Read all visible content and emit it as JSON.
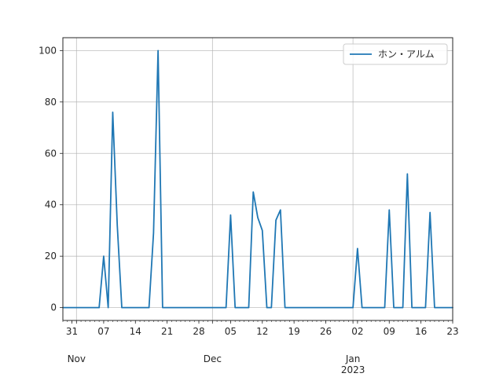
{
  "chart_data": {
    "type": "line",
    "legend": {
      "placement": "top-right"
    },
    "grid": true,
    "xlim": [
      "2022-10-29",
      "2023-01-23"
    ],
    "ylim": [
      -5,
      105
    ],
    "y_ticks": [
      0,
      20,
      40,
      60,
      80,
      100
    ],
    "x_ticks": [
      {
        "date": "2022-10-31",
        "label": "31"
      },
      {
        "date": "2022-11-07",
        "label": "07"
      },
      {
        "date": "2022-11-14",
        "label": "14"
      },
      {
        "date": "2022-11-21",
        "label": "21"
      },
      {
        "date": "2022-11-28",
        "label": "28"
      },
      {
        "date": "2022-12-05",
        "label": "05"
      },
      {
        "date": "2022-12-12",
        "label": "12"
      },
      {
        "date": "2022-12-19",
        "label": "19"
      },
      {
        "date": "2022-12-26",
        "label": "26"
      },
      {
        "date": "2023-01-02",
        "label": "02"
      },
      {
        "date": "2023-01-09",
        "label": "09"
      },
      {
        "date": "2023-01-16",
        "label": "16"
      },
      {
        "date": "2023-01-23",
        "label": "23"
      }
    ],
    "month_labels": [
      {
        "date": "2022-11-01",
        "label": "Nov"
      },
      {
        "date": "2022-12-01",
        "label": "Dec"
      },
      {
        "date": "2023-01-01",
        "label": "Jan"
      }
    ],
    "year_label": {
      "date": "2023-01-01",
      "label": "2023"
    },
    "series": [
      {
        "name": "ホン・アルム",
        "color": "#1f77b4",
        "points": [
          [
            "2022-10-29",
            0
          ],
          [
            "2022-11-06",
            0
          ],
          [
            "2022-11-07",
            20
          ],
          [
            "2022-11-08",
            0
          ],
          [
            "2022-11-09",
            76
          ],
          [
            "2022-11-10",
            32
          ],
          [
            "2022-11-11",
            0
          ],
          [
            "2022-11-17",
            0
          ],
          [
            "2022-11-18",
            29
          ],
          [
            "2022-11-19",
            100
          ],
          [
            "2022-11-20",
            0
          ],
          [
            "2022-12-04",
            0
          ],
          [
            "2022-12-05",
            36
          ],
          [
            "2022-12-06",
            0
          ],
          [
            "2022-12-09",
            0
          ],
          [
            "2022-12-10",
            45
          ],
          [
            "2022-12-11",
            35
          ],
          [
            "2022-12-12",
            30
          ],
          [
            "2022-12-13",
            0
          ],
          [
            "2022-12-14",
            0
          ],
          [
            "2022-12-15",
            34
          ],
          [
            "2022-12-16",
            38
          ],
          [
            "2022-12-17",
            0
          ],
          [
            "2023-01-01",
            0
          ],
          [
            "2023-01-02",
            23
          ],
          [
            "2023-01-03",
            0
          ],
          [
            "2023-01-08",
            0
          ],
          [
            "2023-01-09",
            38
          ],
          [
            "2023-01-10",
            0
          ],
          [
            "2023-01-12",
            0
          ],
          [
            "2023-01-13",
            52
          ],
          [
            "2023-01-14",
            0
          ],
          [
            "2023-01-17",
            0
          ],
          [
            "2023-01-18",
            37
          ],
          [
            "2023-01-19",
            0
          ],
          [
            "2023-01-23",
            0
          ]
        ]
      }
    ]
  }
}
